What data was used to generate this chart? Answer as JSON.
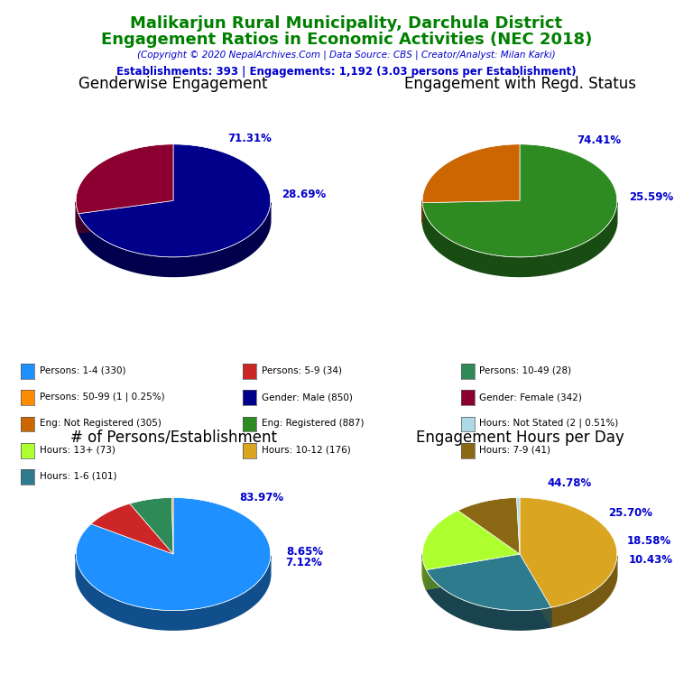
{
  "title_line1": "Malikarjun Rural Municipality, Darchula District",
  "title_line2": "Engagement Ratios in Economic Activities (NEC 2018)",
  "subtitle": "(Copyright © 2020 NepalArchives.Com | Data Source: CBS | Creator/Analyst: Milan Karki)",
  "stats_line": "Establishments: 393 | Engagements: 1,192 (3.03 persons per Establishment)",
  "title_color": "#008000",
  "subtitle_color": "#0000CD",
  "stats_color": "#0000CD",
  "gender_title": "Genderwise Engagement",
  "gender_values": [
    71.31,
    28.69
  ],
  "gender_colors": [
    "#00008B",
    "#8B0030"
  ],
  "gender_labels": [
    "71.31%",
    "28.69%"
  ],
  "gender_startangle": 90,
  "regd_title": "Engagement with Regd. Status",
  "regd_values": [
    74.41,
    25.59
  ],
  "regd_colors": [
    "#2E8B22",
    "#CC6600"
  ],
  "regd_labels": [
    "74.41%",
    "25.59%"
  ],
  "regd_startangle": 90,
  "persons_title": "# of Persons/Establishment",
  "persons_values": [
    83.97,
    8.65,
    7.12,
    0.25
  ],
  "persons_colors": [
    "#1E90FF",
    "#CD2626",
    "#2E8B57",
    "#FF8C00"
  ],
  "persons_labels": [
    "83.97%",
    "8.65%",
    "7.12%",
    ""
  ],
  "persons_startangle": 90,
  "hours_title": "Engagement Hours per Day",
  "hours_values": [
    44.78,
    25.7,
    18.58,
    10.43,
    0.51
  ],
  "hours_colors": [
    "#DAA520",
    "#2F7B8E",
    "#ADFF2F",
    "#8B6914",
    "#ADD8E6"
  ],
  "hours_labels": [
    "44.78%",
    "25.70%",
    "18.58%",
    "10.43%",
    ""
  ],
  "hours_startangle": 90,
  "legend_items": [
    {
      "label": "Persons: 1-4 (330)",
      "color": "#1E90FF"
    },
    {
      "label": "Persons: 5-9 (34)",
      "color": "#CD2626"
    },
    {
      "label": "Persons: 10-49 (28)",
      "color": "#2E8B57"
    },
    {
      "label": "Persons: 50-99 (1 | 0.25%)",
      "color": "#FF8C00"
    },
    {
      "label": "Gender: Male (850)",
      "color": "#00008B"
    },
    {
      "label": "Gender: Female (342)",
      "color": "#8B0030"
    },
    {
      "label": "Eng: Not Registered (305)",
      "color": "#CC6600"
    },
    {
      "label": "Eng: Registered (887)",
      "color": "#2E8B22"
    },
    {
      "label": "Hours: Not Stated (2 | 0.51%)",
      "color": "#ADD8E6"
    },
    {
      "label": "Hours: 13+ (73)",
      "color": "#ADFF2F"
    },
    {
      "label": "Hours: 10-12 (176)",
      "color": "#DAA520"
    },
    {
      "label": "Hours: 7-9 (41)",
      "color": "#8B6914"
    },
    {
      "label": "Hours: 1-6 (101)",
      "color": "#2F7B8E"
    }
  ],
  "label_color": "#0000CD",
  "label_fontsize": 8.5,
  "pie_title_fontsize": 12
}
